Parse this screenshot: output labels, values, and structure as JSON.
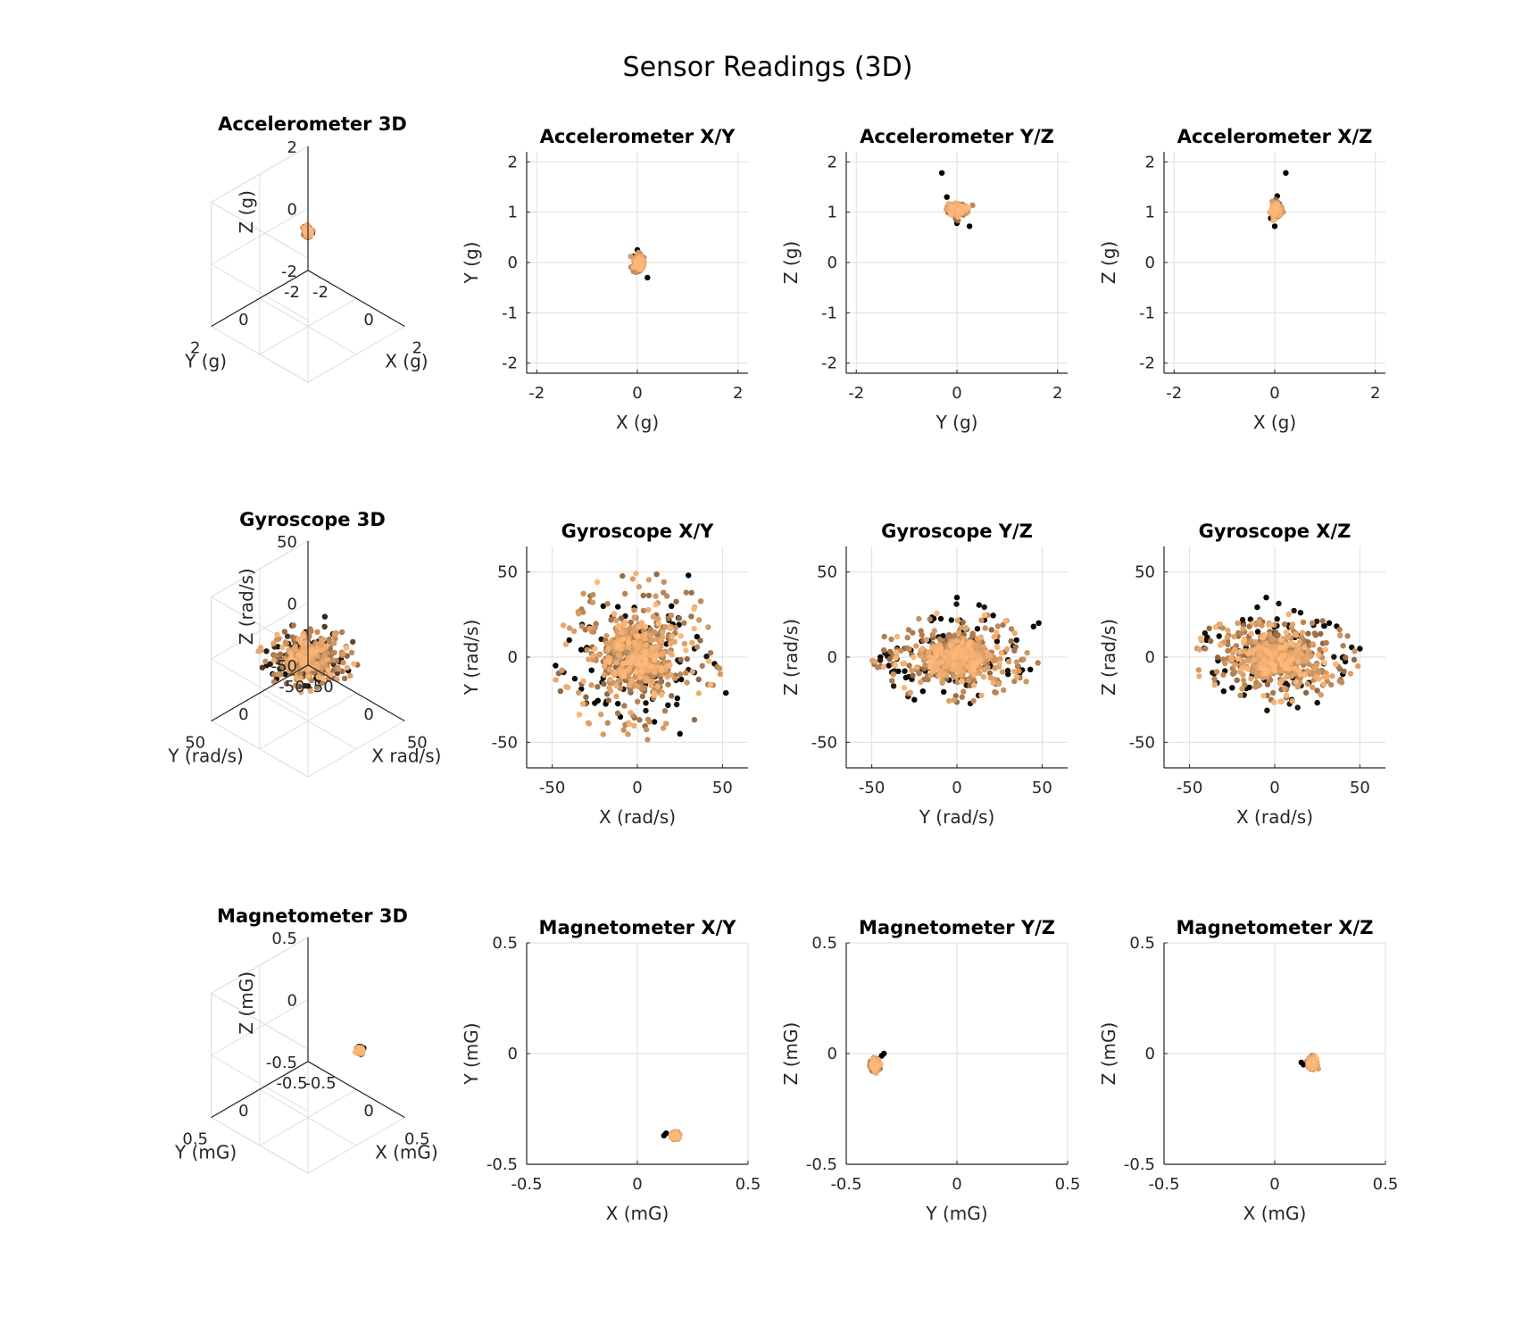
{
  "figure": {
    "title": "Sensor Readings (3D)"
  },
  "colors": {
    "low": "#000000",
    "high": "#ffb878",
    "axis": "#262626",
    "grid": "#dedede"
  },
  "chart_data": [
    {
      "type": "scatter3d",
      "sensor": "accel",
      "title": "Accelerometer 3D",
      "xlabel": "X (g)",
      "ylabel": "Y (g)",
      "zlabel": "Z (g)",
      "xlim": [
        -2,
        2
      ],
      "ylim": [
        -2,
        2
      ],
      "zlim": [
        -2,
        2
      ],
      "xticks": [
        "-2",
        "0",
        "2"
      ],
      "yticks": [
        "-2",
        "0",
        "2"
      ],
      "zticks": [
        "-2",
        "0",
        "2"
      ],
      "grid": true,
      "cluster": {
        "center": [
          0,
          0,
          1.05
        ],
        "spread": [
          0.08,
          0.08,
          0.1
        ]
      }
    },
    {
      "type": "scatter",
      "sensor": "accel",
      "title": "Accelerometer X/Y",
      "xlabel": "X (g)",
      "ylabel": "Y (g)",
      "xlim": [
        -2.2,
        2.2
      ],
      "ylim": [
        -2.2,
        2.2
      ],
      "xticks": [
        -2,
        0,
        2
      ],
      "yticks": [
        -2,
        -1,
        0,
        1,
        2
      ],
      "grid": true,
      "cluster": {
        "center": [
          0.03,
          0.0
        ],
        "spread": [
          0.06,
          0.1
        ]
      },
      "outliers": [
        [
          0.2,
          -0.3
        ],
        [
          0.0,
          0.25
        ],
        [
          -0.08,
          0.12
        ]
      ]
    },
    {
      "type": "scatter",
      "sensor": "accel",
      "title": "Accelerometer Y/Z",
      "xlabel": "Y (g)",
      "ylabel": "Z (g)",
      "xlim": [
        -2.2,
        2.2
      ],
      "ylim": [
        -2.2,
        2.2
      ],
      "xticks": [
        -2,
        0,
        2
      ],
      "yticks": [
        -2,
        -1,
        0,
        1,
        2
      ],
      "grid": true,
      "cluster": {
        "center": [
          0.0,
          1.05
        ],
        "spread": [
          0.12,
          0.08
        ]
      },
      "outliers": [
        [
          -0.3,
          1.78
        ],
        [
          0.25,
          0.72
        ],
        [
          0.0,
          0.78
        ],
        [
          -0.2,
          1.3
        ]
      ]
    },
    {
      "type": "scatter",
      "sensor": "accel",
      "title": "Accelerometer X/Z",
      "xlabel": "X (g)",
      "ylabel": "Z (g)",
      "xlim": [
        -2.2,
        2.2
      ],
      "ylim": [
        -2.2,
        2.2
      ],
      "xticks": [
        -2,
        0,
        2
      ],
      "yticks": [
        -2,
        -1,
        0,
        1,
        2
      ],
      "grid": true,
      "cluster": {
        "center": [
          0.03,
          1.05
        ],
        "spread": [
          0.06,
          0.1
        ]
      },
      "outliers": [
        [
          0.22,
          1.78
        ],
        [
          0.0,
          0.72
        ],
        [
          -0.08,
          0.88
        ],
        [
          0.05,
          1.32
        ]
      ]
    },
    {
      "type": "scatter3d",
      "sensor": "gyro",
      "title": "Gyroscope 3D",
      "xlabel": "X rad/s)",
      "ylabel": "Y (rad/s)",
      "zlabel": "Z (rad/s)",
      "xlim": [
        -60,
        60
      ],
      "ylim": [
        -60,
        60
      ],
      "zlim": [
        -60,
        60
      ],
      "xticks": [
        "-50",
        "0",
        "50"
      ],
      "yticks": [
        "-50",
        "0",
        "50"
      ],
      "zticks": [
        "-50",
        "0",
        "50"
      ],
      "grid": true,
      "cluster": {
        "center": [
          0,
          0,
          0
        ],
        "spread": [
          15,
          15,
          10
        ]
      }
    },
    {
      "type": "scatter",
      "sensor": "gyro",
      "title": "Gyroscope X/Y",
      "xlabel": "X (rad/s)",
      "ylabel": "Y (rad/s)",
      "xlim": [
        -65,
        65
      ],
      "ylim": [
        -65,
        65
      ],
      "xticks": [
        -50,
        0,
        50
      ],
      "yticks": [
        -50,
        0,
        50
      ],
      "grid": true,
      "cluster": {
        "center": [
          0,
          0
        ],
        "spread": [
          15,
          15
        ]
      },
      "outliers": [
        [
          30,
          48
        ],
        [
          -20,
          30
        ],
        [
          52,
          -21
        ],
        [
          -30,
          -27
        ],
        [
          -10,
          -35
        ],
        [
          -48,
          -5
        ],
        [
          -40,
          10
        ],
        [
          25,
          -45
        ],
        [
          35,
          12
        ],
        [
          20,
          30
        ],
        [
          -25,
          -27
        ],
        [
          10,
          -38
        ]
      ]
    },
    {
      "type": "scatter",
      "sensor": "gyro",
      "title": "Gyroscope Y/Z",
      "xlabel": "Y (rad/s)",
      "ylabel": "Z (rad/s)",
      "xlim": [
        -65,
        65
      ],
      "ylim": [
        -65,
        65
      ],
      "xticks": [
        -50,
        0,
        50
      ],
      "yticks": [
        -50,
        0,
        50
      ],
      "grid": true,
      "cluster": {
        "center": [
          0,
          0
        ],
        "spread": [
          15,
          8
        ]
      },
      "outliers": [
        [
          -45,
          0
        ],
        [
          -30,
          -12
        ],
        [
          48,
          20
        ],
        [
          45,
          18
        ],
        [
          -20,
          -20
        ],
        [
          35,
          10
        ],
        [
          -40,
          -5
        ],
        [
          -25,
          -25
        ],
        [
          0,
          35
        ],
        [
          30,
          -10
        ]
      ]
    },
    {
      "type": "scatter",
      "sensor": "gyro",
      "title": "Gyroscope X/Z",
      "xlabel": "X (rad/s)",
      "ylabel": "Z (rad/s)",
      "xlim": [
        -65,
        65
      ],
      "ylim": [
        -65,
        65
      ],
      "xticks": [
        -50,
        0,
        50
      ],
      "yticks": [
        -50,
        0,
        50
      ],
      "grid": true,
      "cluster": {
        "center": [
          0,
          0
        ],
        "spread": [
          15,
          8
        ]
      },
      "outliers": [
        [
          -30,
          -20
        ],
        [
          -25,
          -18
        ],
        [
          32,
          20
        ],
        [
          50,
          5
        ],
        [
          -10,
          20
        ],
        [
          20,
          -15
        ],
        [
          -40,
          10
        ],
        [
          -5,
          35
        ],
        [
          40,
          -10
        ],
        [
          10,
          -25
        ]
      ]
    },
    {
      "type": "scatter3d",
      "sensor": "mag",
      "title": "Magnetometer 3D",
      "xlabel": "X (mG)",
      "ylabel": "Y (mG)",
      "zlabel": "Z (mG)",
      "xlim": [
        -0.5,
        0.5
      ],
      "ylim": [
        -0.5,
        0.5
      ],
      "zlim": [
        -0.5,
        0.5
      ],
      "xticks": [
        "-0.5",
        "0",
        "0.5"
      ],
      "yticks": [
        "-0.5",
        "0",
        "0.5"
      ],
      "zticks": [
        "-0.5",
        "0",
        "0.5"
      ],
      "grid": true,
      "cluster": {
        "center": [
          0.17,
          -0.37,
          -0.05
        ],
        "spread": [
          0.015,
          0.015,
          0.015
        ]
      }
    },
    {
      "type": "scatter",
      "sensor": "mag",
      "title": "Magnetometer X/Y",
      "xlabel": "X (mG)",
      "ylabel": "Y (mG)",
      "xlim": [
        -0.5,
        0.5
      ],
      "ylim": [
        -0.5,
        0.5
      ],
      "xticks": [
        -0.5,
        0,
        0.5
      ],
      "yticks": [
        -0.5,
        0,
        0.5
      ],
      "grid": true,
      "cluster": {
        "center": [
          0.17,
          -0.37
        ],
        "spread": [
          0.012,
          0.01
        ]
      },
      "outliers": [
        [
          0.12,
          -0.37
        ],
        [
          0.13,
          -0.36
        ]
      ]
    },
    {
      "type": "scatter",
      "sensor": "mag",
      "title": "Magnetometer Y/Z",
      "xlabel": "Y (mG)",
      "ylabel": "Z (mG)",
      "xlim": [
        -0.5,
        0.5
      ],
      "ylim": [
        -0.5,
        0.5
      ],
      "xticks": [
        -0.5,
        0,
        0.5
      ],
      "yticks": [
        -0.5,
        0,
        0.5
      ],
      "grid": true,
      "cluster": {
        "center": [
          -0.37,
          -0.05
        ],
        "spread": [
          0.012,
          0.018
        ]
      },
      "outliers": [
        [
          -0.33,
          0.0
        ],
        [
          -0.34,
          -0.01
        ]
      ]
    },
    {
      "type": "scatter",
      "sensor": "mag",
      "title": "Magnetometer X/Z",
      "xlabel": "X (mG)",
      "ylabel": "Z (mG)",
      "xlim": [
        -0.5,
        0.5
      ],
      "ylim": [
        -0.5,
        0.5
      ],
      "xticks": [
        -0.5,
        0,
        0.5
      ],
      "yticks": [
        -0.5,
        0,
        0.5
      ],
      "grid": true,
      "cluster": {
        "center": [
          0.17,
          -0.04
        ],
        "spread": [
          0.012,
          0.018
        ]
      },
      "outliers": [
        [
          0.12,
          -0.04
        ],
        [
          0.13,
          -0.05
        ]
      ]
    }
  ]
}
